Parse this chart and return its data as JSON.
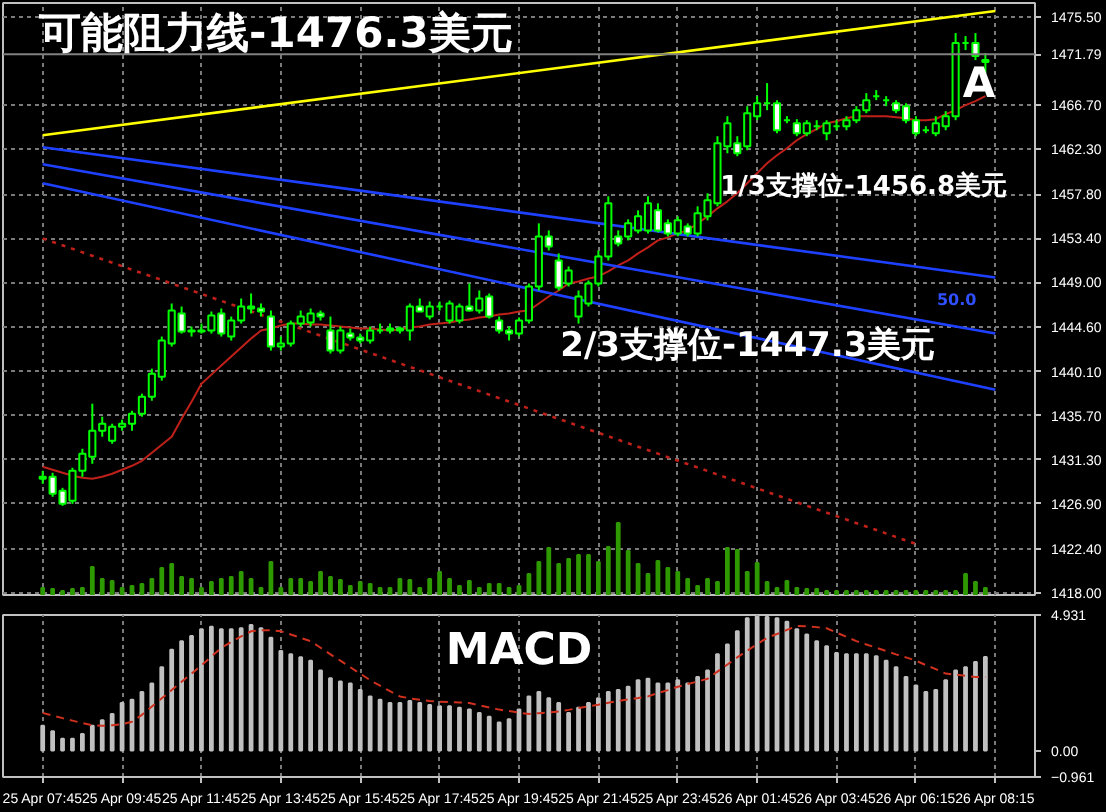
{
  "chart_data": [
    {
      "type": "candlestick",
      "categories": [
        "25 Apr 07:45",
        null,
        null,
        null,
        null,
        null,
        null,
        null,
        "25 Apr 09:45",
        null,
        null,
        null,
        null,
        null,
        null,
        null,
        "25 Apr 11:45",
        null,
        null,
        null,
        null,
        null,
        null,
        null,
        "25 Apr 13:45",
        null,
        null,
        null,
        null,
        null,
        null,
        null,
        "25 Apr 15:45",
        null,
        null,
        null,
        null,
        null,
        null,
        null,
        "25 Apr 17:45",
        null,
        null,
        null,
        null,
        null,
        null,
        null,
        "25 Apr 19:45",
        null,
        null,
        null,
        null,
        null,
        null,
        null,
        "25 Apr 21:45",
        null,
        null,
        null,
        null,
        null,
        null,
        null,
        "25 Apr 23:45",
        null,
        null,
        null,
        null,
        null,
        null,
        null,
        "26 Apr 01:45",
        null,
        null,
        null,
        null,
        null,
        null,
        null,
        "26 Apr 03:45",
        null,
        null,
        null,
        null,
        null,
        null,
        null,
        "26 Apr 06:15",
        null,
        null,
        null,
        null,
        null,
        null,
        null,
        "26 Apr 08:15"
      ],
      "ohlc": [
        [
          1429.6,
          1430.2,
          1428.9,
          1429.4
        ],
        [
          1429.6,
          1430.0,
          1427.6,
          1427.9
        ],
        [
          1428.2,
          1428.5,
          1426.7,
          1426.9
        ],
        [
          1427.2,
          1430.5,
          1426.9,
          1430.2
        ],
        [
          1430.2,
          1432.4,
          1429.6,
          1431.9
        ],
        [
          1431.6,
          1436.9,
          1430.9,
          1434.2
        ],
        [
          1434.2,
          1435.6,
          1433.6,
          1434.9
        ],
        [
          1433.2,
          1434.9,
          1432.9,
          1434.6
        ],
        [
          1434.6,
          1435.3,
          1434.2,
          1434.9
        ],
        [
          1434.9,
          1436.2,
          1434.2,
          1435.9
        ],
        [
          1435.9,
          1437.9,
          1435.6,
          1437.6
        ],
        [
          1437.6,
          1440.4,
          1437.2,
          1439.9
        ],
        [
          1439.6,
          1443.6,
          1439.2,
          1443.2
        ],
        [
          1442.9,
          1446.9,
          1442.6,
          1446.2
        ],
        [
          1445.9,
          1446.6,
          1443.9,
          1444.1
        ],
        [
          1444.1,
          1444.6,
          1443.6,
          1444.2
        ],
        [
          1444.2,
          1444.9,
          1443.9,
          1444.1
        ],
        [
          1444.2,
          1446.1,
          1443.9,
          1445.7
        ],
        [
          1445.9,
          1446.4,
          1443.6,
          1443.9
        ],
        [
          1443.6,
          1445.6,
          1443.2,
          1445.2
        ],
        [
          1445.2,
          1447.4,
          1444.9,
          1446.6
        ],
        [
          1446.6,
          1447.9,
          1445.9,
          1446.4
        ],
        [
          1446.4,
          1446.9,
          1445.6,
          1446.1
        ],
        [
          1445.6,
          1446.2,
          1442.2,
          1442.6
        ],
        [
          1442.6,
          1443.6,
          1442.2,
          1442.9
        ],
        [
          1442.9,
          1445.2,
          1442.6,
          1444.9
        ],
        [
          1444.9,
          1446.2,
          1444.6,
          1445.6
        ],
        [
          1445.0,
          1446.4,
          1444.6,
          1445.9
        ],
        [
          1445.9,
          1446.2,
          1445.2,
          1445.6
        ],
        [
          1444.2,
          1445.6,
          1441.9,
          1442.2
        ],
        [
          1442.2,
          1444.6,
          1441.9,
          1444.2
        ],
        [
          1443.9,
          1444.4,
          1443.2,
          1443.5
        ],
        [
          1443.5,
          1443.9,
          1442.9,
          1443.2
        ],
        [
          1443.2,
          1444.6,
          1442.9,
          1444.2
        ],
        [
          1444.2,
          1444.9,
          1443.9,
          1444.2
        ],
        [
          1444.2,
          1444.9,
          1443.9,
          1444.4
        ],
        [
          1444.4,
          1444.6,
          1443.9,
          1444.2
        ],
        [
          1444.2,
          1446.9,
          1443.2,
          1446.6
        ],
        [
          1446.6,
          1447.4,
          1446.1,
          1446.1
        ],
        [
          1445.6,
          1447.1,
          1445.3,
          1446.6
        ],
        [
          1446.6,
          1447.1,
          1446.2,
          1446.6
        ],
        [
          1445.2,
          1447.2,
          1444.9,
          1446.9
        ],
        [
          1445.2,
          1446.9,
          1444.9,
          1446.6
        ],
        [
          1446.6,
          1448.9,
          1446.1,
          1446.2
        ],
        [
          1446.2,
          1448.2,
          1445.9,
          1447.4
        ],
        [
          1447.6,
          1447.9,
          1445.4,
          1445.6
        ],
        [
          1445.2,
          1445.6,
          1443.9,
          1444.2
        ],
        [
          1444.2,
          1444.6,
          1443.2,
          1443.9
        ],
        [
          1443.9,
          1445.5,
          1443.6,
          1445.2
        ],
        [
          1445.2,
          1448.9,
          1444.9,
          1448.6
        ],
        [
          1448.6,
          1454.9,
          1448.2,
          1453.6
        ],
        [
          1453.6,
          1454.2,
          1452.2,
          1452.6
        ],
        [
          1451.2,
          1451.9,
          1448.2,
          1448.5
        ],
        [
          1448.9,
          1450.6,
          1448.6,
          1450.2
        ],
        [
          1445.6,
          1448.2,
          1444.9,
          1447.6
        ],
        [
          1446.9,
          1449.2,
          1446.6,
          1448.9
        ],
        [
          1448.9,
          1452.2,
          1448.6,
          1451.6
        ],
        [
          1451.6,
          1457.6,
          1451.2,
          1456.9
        ],
        [
          1453.6,
          1454.2,
          1452.6,
          1452.9
        ],
        [
          1453.6,
          1455.3,
          1453.2,
          1454.9
        ],
        [
          1454.2,
          1456.2,
          1453.9,
          1455.6
        ],
        [
          1454.2,
          1457.6,
          1453.9,
          1456.9
        ],
        [
          1456.2,
          1456.9,
          1454.0,
          1454.2
        ],
        [
          1454.9,
          1455.3,
          1453.6,
          1453.9
        ],
        [
          1453.9,
          1455.6,
          1453.6,
          1455.2
        ],
        [
          1454.6,
          1454.9,
          1453.6,
          1453.9
        ],
        [
          1453.9,
          1456.6,
          1453.6,
          1455.9
        ],
        [
          1455.6,
          1457.9,
          1455.2,
          1457.2
        ],
        [
          1456.9,
          1463.6,
          1456.6,
          1462.9
        ],
        [
          1462.6,
          1465.6,
          1461.9,
          1464.9
        ],
        [
          1462.9,
          1463.6,
          1461.6,
          1461.9
        ],
        [
          1462.6,
          1466.6,
          1462.2,
          1465.9
        ],
        [
          1465.6,
          1467.6,
          1465.2,
          1466.9
        ],
        [
          1466.9,
          1468.9,
          1466.2,
          1466.9
        ],
        [
          1466.9,
          1467.2,
          1463.9,
          1464.2
        ],
        [
          1465.2,
          1465.6,
          1464.9,
          1465.2
        ],
        [
          1464.9,
          1465.3,
          1463.6,
          1463.9
        ],
        [
          1463.9,
          1465.2,
          1463.6,
          1464.9
        ],
        [
          1464.6,
          1465.2,
          1464.2,
          1464.6
        ],
        [
          1463.9,
          1465.2,
          1463.2,
          1464.9
        ],
        [
          1464.6,
          1465.2,
          1464.2,
          1464.6
        ],
        [
          1464.6,
          1465.6,
          1464.2,
          1465.2
        ],
        [
          1465.2,
          1466.6,
          1464.9,
          1466.2
        ],
        [
          1466.2,
          1467.9,
          1465.9,
          1467.2
        ],
        [
          1467.6,
          1468.2,
          1467.2,
          1467.6
        ],
        [
          1467.2,
          1467.6,
          1466.6,
          1467.2
        ],
        [
          1466.9,
          1467.2,
          1465.9,
          1466.2
        ],
        [
          1466.6,
          1466.9,
          1464.9,
          1465.2
        ],
        [
          1465.2,
          1465.6,
          1463.6,
          1463.9
        ],
        [
          1464.2,
          1464.6,
          1463.9,
          1464.2
        ],
        [
          1463.9,
          1465.6,
          1463.6,
          1464.9
        ],
        [
          1464.6,
          1466.1,
          1464.2,
          1465.6
        ],
        [
          1465.6,
          1473.9,
          1465.2,
          1472.9
        ],
        [
          1472.9,
          1473.6,
          1472.2,
          1472.9
        ],
        [
          1472.9,
          1473.9,
          1471.2,
          1471.6
        ],
        [
          1471.2,
          1471.9,
          1469.9,
          1471.0
        ],
        null
      ],
      "color": "#00ff00",
      "ylim": [
        1417.8,
        1476.9
      ],
      "yticks": [
        {
          "value": 1475.5,
          "label": "1475.50"
        },
        {
          "value": 1466.7,
          "label": "1466.70"
        },
        {
          "value": 1462.3,
          "label": "1462.30"
        },
        {
          "value": 1457.8,
          "label": "1457.80"
        },
        {
          "value": 1453.4,
          "label": "1453.40"
        },
        {
          "value": 1449.0,
          "label": "1449.00"
        },
        {
          "value": 1444.6,
          "label": "1444.60"
        },
        {
          "value": 1440.1,
          "label": "1440.10"
        },
        {
          "value": 1435.7,
          "label": "1435.70"
        },
        {
          "value": 1431.3,
          "label": "1431.30"
        },
        {
          "value": 1426.9,
          "label": "1426.90"
        },
        {
          "value": 1422.4,
          "label": "1422.40"
        },
        {
          "value": 1418.0,
          "label": "1418.00"
        }
      ],
      "tick_labels": "y",
      "grid": true,
      "ref_lines": [
        {
          "axis": "y",
          "value": 1471.79,
          "label": "1471.79",
          "color": "#808080"
        }
      ],
      "annotations": [
        "可能阻力线-1476.3美元",
        "A",
        "1/3支撑位-1456.8美元",
        "2/3支撑位-1447.3美元",
        "50.0"
      ],
      "series": [
        {
          "type": "line",
          "color": "#c0201a",
          "values": [
            1430.6,
            1430.3,
            1430.0,
            1429.7,
            1429.5,
            1429.4,
            1429.6,
            1429.9,
            1430.3,
            1430.7,
            1431.2,
            1432.0,
            1432.8,
            1433.6,
            1435.4,
            1437.1,
            1438.9,
            1439.8,
            1440.7,
            1441.6,
            1442.5,
            1443.4,
            1444.2,
            1444.4,
            1444.7,
            1444.9,
            1444.9,
            1444.8,
            1444.8,
            1444.7,
            1444.6,
            1444.5,
            1444.4,
            1444.4,
            1444.3,
            1444.2,
            1444.3,
            1444.5,
            1444.6,
            1444.8,
            1444.9,
            1445.0,
            1445.2,
            1445.3,
            1445.5,
            1445.6,
            1445.8,
            1445.9,
            1446.1,
            1446.2,
            1446.9,
            1447.6,
            1448.2,
            1448.9,
            1449.1,
            1449.4,
            1449.6,
            1450.1,
            1450.7,
            1451.2,
            1451.9,
            1452.5,
            1453.2,
            1453.5,
            1453.9,
            1454.2,
            1454.9,
            1455.6,
            1456.4,
            1457.1,
            1457.9,
            1458.9,
            1459.9,
            1460.9,
            1461.7,
            1462.4,
            1463.2,
            1463.8,
            1464.3,
            1464.9,
            1465.1,
            1465.4,
            1465.6,
            1465.6,
            1465.6,
            1465.6,
            1465.5,
            1465.4,
            1465.2,
            1465.2,
            1465.3,
            1465.8,
            1466.2,
            1466.7,
            1467.1,
            1467.6,
            null
          ]
        },
        {
          "type": "bar",
          "color": "#2e9a00",
          "values": [
            1418.5,
            1418.4,
            1418.2,
            1418.4,
            1418.5,
            1420.6,
            1419.4,
            1419.2,
            1418.5,
            1418.7,
            1418.9,
            1419.4,
            1420.5,
            1420.9,
            1419.6,
            1419.4,
            1418.5,
            1419.1,
            1419.4,
            1419.6,
            1420.1,
            1419.4,
            1418.5,
            1421.1,
            1418.5,
            1419.4,
            1419.4,
            1419.1,
            1420.1,
            1419.6,
            1419.3,
            1418.7,
            1419.1,
            1418.9,
            1418.5,
            1418.5,
            1419.4,
            1419.3,
            1418.5,
            1419.4,
            1420.1,
            1419.4,
            1418.7,
            1419.2,
            1418.5,
            1418.9,
            1418.9,
            1418.5,
            1418.7,
            1419.9,
            1421.1,
            1422.5,
            1420.9,
            1421.4,
            1421.8,
            1421.8,
            1421.1,
            1422.6,
            1425.0,
            1422.2,
            1420.9,
            1419.9,
            1421.2,
            1420.5,
            1420.1,
            1419.4,
            1418.7,
            1419.4,
            1419.1,
            1422.5,
            1422.3,
            1420.1,
            1421.0,
            1419.1,
            1418.5,
            1419.2,
            1418.5,
            1418.4,
            1418.4,
            1418.2,
            1418.2,
            1418.2,
            1418.2,
            1418.2,
            1418.2,
            1418.2,
            1418.2,
            1418.2,
            1418.2,
            1418.2,
            1418.2,
            1418.2,
            1418.2,
            1419.9,
            1419.1,
            1418.5,
            null
          ]
        },
        {
          "type": "line",
          "color": "#ffff00",
          "x": [
            "25 Apr 07:45",
            "26 Apr 08:15"
          ],
          "values": [
            1463.7,
            1476.1
          ]
        },
        {
          "type": "line",
          "color": "#1e40ff",
          "x": [
            "25 Apr 07:45",
            "26 Apr 08:15"
          ],
          "values": [
            1462.5,
            1449.5
          ]
        },
        {
          "type": "line",
          "color": "#1e40ff",
          "x": [
            "25 Apr 07:45",
            "26 Apr 08:15"
          ],
          "values": [
            1460.8,
            1443.9
          ]
        },
        {
          "type": "line",
          "color": "#1e40ff",
          "x": [
            "25 Apr 07:45",
            "26 Apr 08:15"
          ],
          "values": [
            1458.9,
            1438.3
          ]
        },
        {
          "type": "line",
          "color": "#c0201a",
          "line_style": "dotted",
          "x": [
            "25 Apr 07:45",
            "26 Apr 06:15"
          ],
          "values": [
            1453.4,
            1422.9
          ]
        }
      ]
    },
    {
      "type": "bar",
      "title": "MACD",
      "categories": [
        "25 Apr 07:45",
        null,
        null,
        null,
        null,
        null,
        null,
        null,
        "25 Apr 09:45",
        null,
        null,
        null,
        null,
        null,
        null,
        null,
        "25 Apr 11:45",
        null,
        null,
        null,
        null,
        null,
        null,
        null,
        "25 Apr 13:45",
        null,
        null,
        null,
        null,
        null,
        null,
        null,
        "25 Apr 15:45",
        null,
        null,
        null,
        null,
        null,
        null,
        null,
        "25 Apr 17:45",
        null,
        null,
        null,
        null,
        null,
        null,
        null,
        "25 Apr 19:45",
        null,
        null,
        null,
        null,
        null,
        null,
        null,
        "25 Apr 21:45",
        null,
        null,
        null,
        null,
        null,
        null,
        null,
        "25 Apr 23:45",
        null,
        null,
        null,
        null,
        null,
        null,
        null,
        "26 Apr 01:45",
        null,
        null,
        null,
        null,
        null,
        null,
        null,
        "26 Apr 03:45",
        null,
        null,
        null,
        null,
        null,
        null,
        null,
        "26 Apr 06:15",
        null,
        null,
        null,
        null,
        null,
        null,
        null,
        "26 Apr 08:15"
      ],
      "ylim": [
        -0.961,
        4.931
      ],
      "yticks": [
        4.931,
        {
          "value": 0,
          "label": "0.00"
        },
        -0.961
      ],
      "grid": "x",
      "series": [
        {
          "type": "bar",
          "color": "#c0c0c0",
          "values": [
            0.9,
            0.7,
            0.43,
            0.43,
            0.6,
            0.9,
            1.1,
            1.33,
            1.73,
            1.85,
            2.13,
            2.44,
            3.03,
            3.67,
            3.98,
            4.17,
            4.41,
            4.5,
            4.41,
            4.41,
            4.45,
            4.57,
            4.45,
            4.1,
            3.62,
            3.5,
            3.39,
            3.27,
            2.91,
            2.63,
            2.51,
            2.44,
            2.2,
            1.97,
            1.85,
            1.73,
            1.73,
            1.8,
            1.73,
            1.66,
            1.61,
            1.61,
            1.56,
            1.49,
            1.37,
            1.23,
            1.02,
            1.14,
            1.49,
            1.97,
            2.13,
            1.9,
            1.73,
            1.37,
            1.56,
            1.73,
            1.9,
            2.13,
            2.2,
            2.32,
            2.56,
            2.61,
            2.44,
            2.44,
            2.56,
            2.44,
            2.68,
            2.91,
            3.5,
            3.86,
            4.34,
            4.81,
            4.88,
            4.86,
            4.81,
            4.69,
            4.41,
            4.22,
            3.98,
            3.79,
            3.55,
            3.5,
            3.5,
            3.5,
            3.43,
            3.27,
            3.03,
            2.68,
            2.37,
            2.13,
            2.2,
            2.56,
            2.91,
            3.03,
            3.22,
            3.4,
            null
          ]
        },
        {
          "type": "line",
          "color": "#d0301e",
          "line_style": "dashed",
          "values": [
            1.37,
            1.27,
            1.18,
            1.09,
            1.0,
            0.92,
            0.9,
            0.92,
            0.96,
            1.05,
            1.3,
            1.6,
            1.9,
            2.2,
            2.5,
            2.8,
            3.1,
            3.42,
            3.74,
            3.95,
            4.15,
            4.34,
            4.38,
            4.38,
            4.34,
            4.22,
            4.1,
            3.98,
            3.74,
            3.5,
            3.27,
            3.03,
            2.8,
            2.56,
            2.36,
            2.16,
            1.97,
            1.9,
            1.85,
            1.8,
            1.78,
            1.76,
            1.75,
            1.73,
            1.65,
            1.57,
            1.49,
            1.44,
            1.38,
            1.33,
            1.36,
            1.39,
            1.42,
            1.48,
            1.55,
            1.61,
            1.67,
            1.74,
            1.8,
            1.86,
            1.91,
            1.97,
            2.09,
            2.2,
            2.32,
            2.42,
            2.51,
            2.61,
            2.87,
            3.13,
            3.39,
            3.63,
            3.87,
            4.1,
            4.24,
            4.39,
            4.53,
            4.52,
            4.49,
            4.45,
            4.29,
            4.14,
            3.98,
            3.86,
            3.74,
            3.62,
            3.5,
            3.39,
            3.27,
            3.11,
            2.96,
            2.8,
            2.76,
            2.72,
            2.68,
            2.68,
            null
          ]
        }
      ]
    }
  ]
}
